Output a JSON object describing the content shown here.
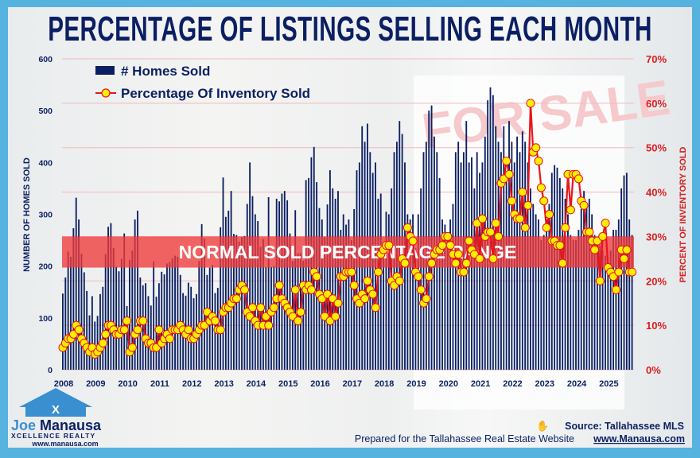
{
  "chart_data": {
    "type": "bar+line",
    "title": "PERCENTAGE OF LISTINGS SELLING EACH MONTH",
    "ylabel": "NUMBER OF HOMES SOLD",
    "y2label": "PERCENT OF INVENTORY SOLD",
    "ylim": [
      0,
      600
    ],
    "y2lim": [
      0,
      70
    ],
    "yticks": [
      "0",
      "100",
      "200",
      "300",
      "400",
      "500",
      "600"
    ],
    "y2ticks": [
      "0%",
      "10%",
      "20%",
      "30%",
      "40%",
      "50%",
      "60%",
      "70%"
    ],
    "years": [
      "2008",
      "2009",
      "2010",
      "2011",
      "2012",
      "2013",
      "2014",
      "2015",
      "2016",
      "2017",
      "2018",
      "2019",
      "2020",
      "2021",
      "2022",
      "2023",
      "2024",
      "2025"
    ],
    "band": {
      "label": "NORMAL SOLD PERCENTAGE RANGE",
      "range_percent": [
        23,
        30
      ]
    },
    "grid": true,
    "legend_placement": "top-left",
    "colors": {
      "bars": "#0b1f63",
      "line": "#e8141b",
      "marker": "#ffee00",
      "band": "#f03a3a",
      "title": "#0b1f63",
      "right_axis": "#d81e1e",
      "frame": "#56b2df"
    },
    "series": [
      {
        "name": "# Homes Sold",
        "type": "bar",
        "axis": "left",
        "values_by_year": {
          "2008": [
            147,
            178,
            228,
            218,
            273,
            332,
            290,
            224,
            188,
            152,
            105,
            142
          ],
          "2009": [
            93,
            104,
            146,
            160,
            223,
            276,
            283,
            235,
            199,
            190,
            214,
            263
          ],
          "2010": [
            123,
            212,
            230,
            290,
            307,
            178,
            163,
            167,
            142,
            124,
            209,
            141
          ],
          "2011": [
            167,
            189,
            184,
            205,
            208,
            215,
            220,
            218,
            183,
            148,
            143,
            168
          ],
          "2012": [
            160,
            138,
            146,
            210,
            281,
            253,
            183,
            197,
            202,
            148,
            158,
            275
          ],
          "2013": [
            371,
            295,
            307,
            345,
            262,
            260,
            247,
            256,
            258,
            320,
            400,
            335
          ],
          "2014": [
            300,
            287,
            237,
            252,
            198,
            333,
            198,
            200,
            330,
            325,
            340,
            345
          ],
          "2015": [
            327,
            263,
            210,
            308,
            225,
            225,
            210,
            366,
            370,
            410,
            430,
            362
          ],
          "2016": [
            312,
            290,
            256,
            319,
            385,
            350,
            330,
            345,
            270,
            300,
            280,
            290
          ],
          "2017": [
            250,
            310,
            385,
            400,
            470,
            440,
            475,
            420,
            380,
            400,
            330,
            340
          ],
          "2018": [
            230,
            305,
            300,
            350,
            420,
            440,
            480,
            455,
            400,
            300,
            290,
            300
          ],
          "2019": [
            235,
            300,
            350,
            420,
            440,
            500,
            510,
            450,
            420,
            370,
            290,
            280
          ],
          "2020": [
            260,
            290,
            320,
            420,
            440,
            400,
            420,
            480,
            400,
            410,
            350,
            420
          ],
          "2021": [
            380,
            400,
            450,
            520,
            545,
            530,
            470,
            440,
            420,
            470,
            380,
            480
          ],
          "2022": [
            440,
            400,
            450,
            420,
            460,
            440,
            400,
            350,
            320,
            300,
            290,
            250
          ],
          "2023": [
            260,
            290,
            320,
            380,
            395,
            390,
            370,
            350,
            330,
            300,
            260,
            250
          ],
          "2024": [
            250,
            270,
            310,
            345,
            320,
            330,
            300,
            260,
            230,
            240,
            230,
            220
          ],
          "2025": [
            200,
            230,
            270,
            270,
            290,
            350,
            375,
            380,
            290,
            260
          ]
        }
      },
      {
        "name": "Percentage Of Inventory Sold",
        "type": "line",
        "axis": "right",
        "values_by_year": {
          "2008": [
            5,
            6,
            7,
            7,
            8,
            10,
            9,
            7,
            6,
            5,
            4,
            5
          ],
          "2009": [
            3.5,
            4,
            5,
            6,
            8,
            10,
            10,
            9,
            8,
            8,
            9,
            9
          ],
          "2010": [
            11,
            4,
            5,
            8,
            9,
            11,
            11,
            7,
            6,
            6,
            5,
            5
          ],
          "2011": [
            9,
            6,
            7,
            8,
            7,
            9,
            9,
            9,
            10,
            9,
            8,
            9
          ],
          "2012": [
            7,
            7,
            8,
            9,
            10,
            10,
            13,
            11,
            12,
            11,
            9,
            9
          ],
          "2013": [
            13,
            14,
            14,
            15,
            16,
            16,
            18,
            19,
            18,
            13,
            12,
            14
          ],
          "2014": [
            11,
            10,
            14,
            10,
            12,
            10,
            13,
            14,
            16,
            19,
            16,
            15
          ],
          "2015": [
            14,
            13,
            12,
            18,
            11,
            13,
            19,
            18,
            19,
            18,
            22,
            21
          ],
          "2016": [
            17,
            16,
            12,
            17,
            11,
            16,
            12,
            15,
            21,
            21,
            22,
            22
          ],
          "2017": [
            22,
            19,
            16,
            15,
            17,
            16,
            20,
            18,
            17,
            14,
            22,
            26
          ],
          "2018": [
            27,
            28,
            28,
            20,
            19,
            21,
            20,
            25,
            24,
            32,
            30,
            29
          ],
          "2019": [
            22,
            21,
            18,
            15,
            16,
            21,
            24,
            26,
            27,
            27,
            28,
            30
          ],
          "2020": [
            30,
            28,
            26,
            24,
            26,
            22,
            22,
            24,
            29,
            27,
            26,
            33
          ],
          "2021": [
            25,
            34,
            30,
            31,
            31,
            25,
            33,
            30,
            42,
            43,
            47,
            44
          ],
          "2022": [
            38,
            35,
            34,
            34,
            40,
            32,
            37,
            60,
            49,
            50,
            47,
            41
          ],
          "2023": [
            38,
            32,
            35,
            29,
            29,
            28,
            28,
            24,
            32,
            44,
            36,
            44
          ],
          "2024": [
            44,
            43,
            38,
            37,
            31,
            31,
            29,
            27,
            29,
            20,
            30,
            33
          ],
          "2025": [
            23,
            22,
            21,
            18,
            22,
            27,
            25,
            27,
            22,
            22
          ]
        }
      }
    ]
  },
  "footer": {
    "source": "Source: Tallahassee MLS",
    "prepared": "Prepared for the Tallahassee Real Estate Website",
    "website": "www.Manausa.com"
  },
  "logo": {
    "name_part1": "Joe",
    "name_part2": "Manausa",
    "tagline": "XCELLENCE REALTY",
    "url": "www.manausa.com"
  },
  "background_sign": "FOR SALE"
}
